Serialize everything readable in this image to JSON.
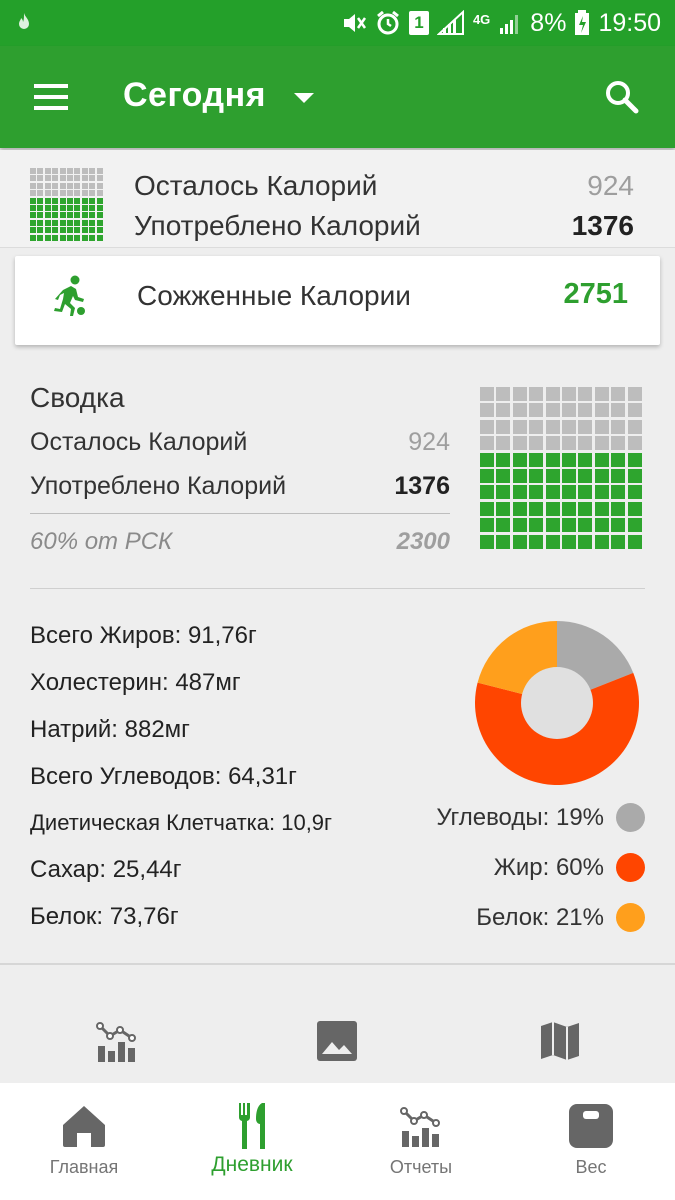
{
  "status_bar": {
    "battery": "8%",
    "time": "19:50",
    "sim": "1",
    "network": "4G"
  },
  "app_bar": {
    "title": "Сегодня"
  },
  "calories": {
    "remaining_label": "Осталось Калорий",
    "remaining_value": "924",
    "consumed_label": "Употреблено Калорий",
    "consumed_value": "1376",
    "burned_label": "Сожженные Калории",
    "burned_value": "2751",
    "consumed_fraction": 0.6
  },
  "summary": {
    "title": "Сводка",
    "remaining_label": "Осталось Калорий",
    "remaining_value": "924",
    "consumed_label": "Употреблено Калорий",
    "consumed_value": "1376",
    "rsk_label": "60% от РСК",
    "rsk_value": "2300"
  },
  "nutrients": [
    "Всего Жиров: 91,76г",
    "Холестерин: 487мг",
    "Натрий: 882мг",
    "Всего Углеводов: 64,31г",
    "Диетическая Клетчатка: 10,9г",
    "Сахар: 25,44г",
    "Белок: 73,76г"
  ],
  "macros": {
    "legend": [
      {
        "label": "Углеводы: 19%",
        "color": "#aaaaaa"
      },
      {
        "label": "Жир: 60%",
        "color": "#ff4500"
      },
      {
        "label": "Белок: 21%",
        "color": "#ff9f1c"
      }
    ],
    "percentages": [
      19,
      60,
      21
    ]
  },
  "quick_actions": [
    "chart-icon",
    "image-icon",
    "map-icon"
  ],
  "bottom_nav": [
    {
      "label": "Главная",
      "icon": "home-icon"
    },
    {
      "label": "Дневник",
      "icon": "utensils-icon",
      "active": true
    },
    {
      "label": "Отчеты",
      "icon": "reports-icon"
    },
    {
      "label": "Вес",
      "icon": "scale-icon"
    }
  ]
}
